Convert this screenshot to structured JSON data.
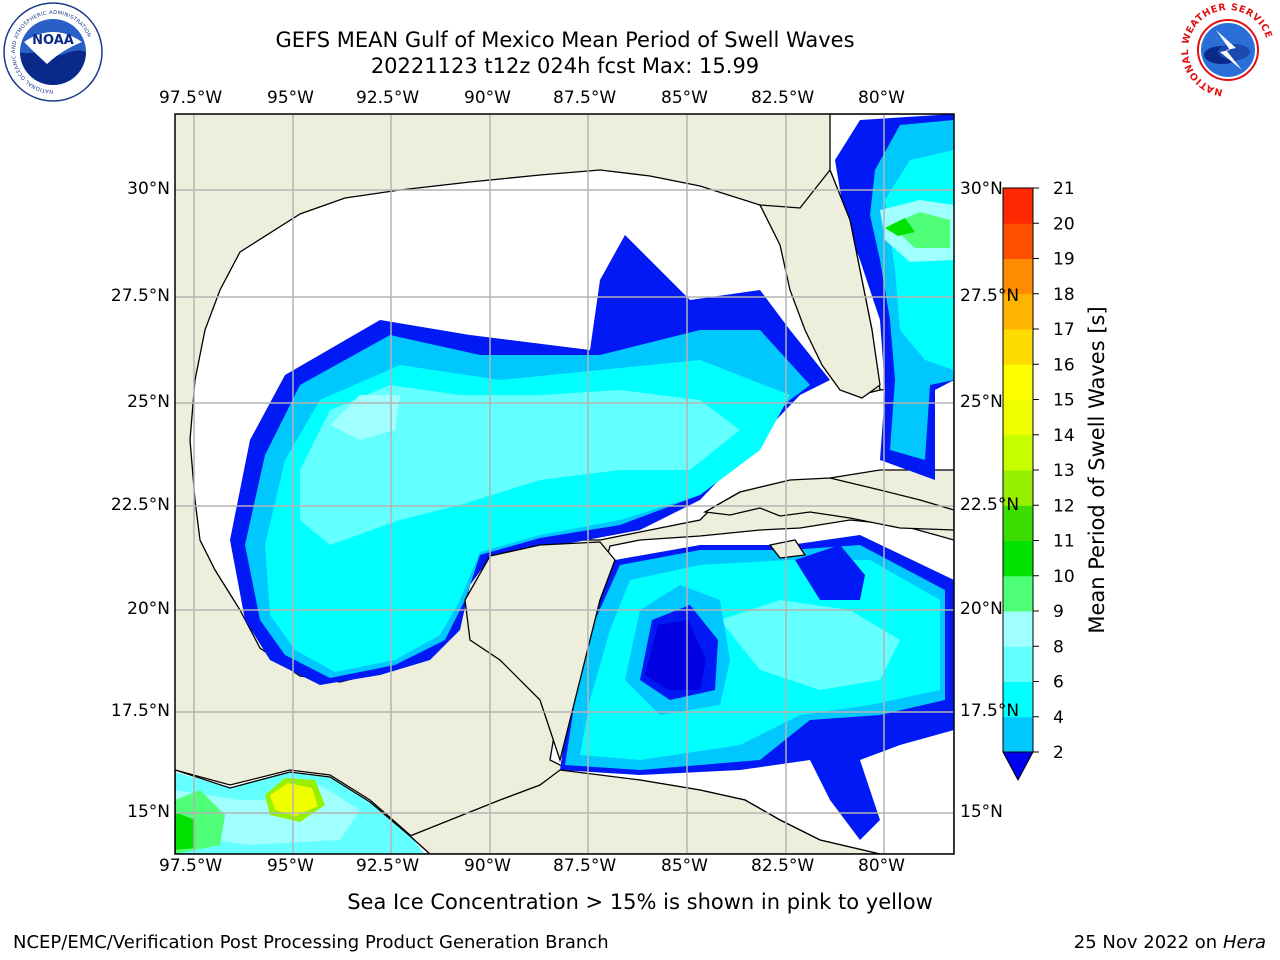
{
  "header": {
    "title_line1": "GEFS MEAN Gulf of Mexico Mean Period of Swell Waves",
    "title_line2": "20221123 t12z 024h fcst   Max: 15.99"
  },
  "map": {
    "lon_labels": [
      "97.5°W",
      "95°W",
      "92.5°W",
      "90°W",
      "87.5°W",
      "85°W",
      "82.5°W",
      "80°W"
    ],
    "lat_labels": [
      "30°N",
      "27.5°N",
      "25°N",
      "22.5°N",
      "20°N",
      "17.5°N",
      "15°N"
    ],
    "region": "Gulf of Mexico",
    "field": "Mean Period of Swell Waves",
    "max_value": 15.99
  },
  "colorbar": {
    "label": "Mean Period of Swell Waves [s]",
    "tick_labels": [
      "2",
      "4",
      "6",
      "8",
      "9",
      "10",
      "11",
      "12",
      "13",
      "14",
      "15",
      "16",
      "17",
      "18",
      "19",
      "20",
      "21"
    ],
    "colors": [
      "#0019f5",
      "#00c8ff",
      "#00ffff",
      "#64ffff",
      "#a0ffff",
      "#50ff78",
      "#00e100",
      "#3cdc00",
      "#96f000",
      "#c8ff00",
      "#f0ff00",
      "#ffff00",
      "#ffdc00",
      "#ffb400",
      "#ff8c00",
      "#ff5000",
      "#ff2800",
      "#ff0000"
    ],
    "extend_color": "#0000f0"
  },
  "logos": {
    "noaa": "NOAA",
    "nws_ring": "NATIONAL WEATHER SERVICE",
    "noaa_ring": "NATIONAL OCEANIC AND ATMOSPHERIC ADMINISTRATION"
  },
  "footer": {
    "note": "Sea Ice Concentration > 15% is shown in pink to yellow",
    "org": "NCEP/EMC/Verification Post Processing Product Generation Branch",
    "date": "25 Nov 2022 on",
    "machine": "Hera"
  }
}
